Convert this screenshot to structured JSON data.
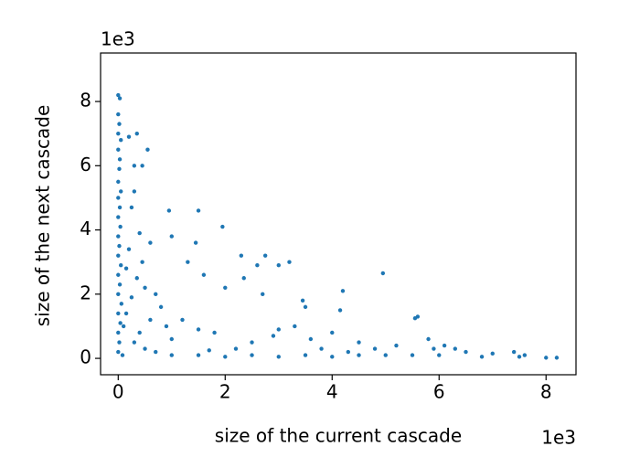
{
  "chart_data": {
    "type": "scatter",
    "x_label": "size of the current cascade",
    "y_label": "size of the next cascade",
    "x_offset_label": "1e3",
    "y_offset_label": "1e3",
    "color": "#1f77b4",
    "xlim": [
      -0.33,
      8.56
    ],
    "ylim": [
      -0.51,
      9.51
    ],
    "xticks": [
      0,
      2,
      4,
      6,
      8
    ],
    "yticks": [
      0,
      2,
      4,
      6,
      8
    ],
    "x": [
      0,
      0.03,
      0,
      0.02,
      0,
      0.05,
      0,
      0.03,
      0.02,
      0,
      0.05,
      0,
      0.03,
      0,
      0.04,
      0,
      0.02,
      0,
      0.05,
      0,
      0.03,
      0,
      0.06,
      0,
      0.04,
      0,
      0.02,
      0,
      0.08,
      0.1,
      0.2,
      0.35,
      0.3,
      0.45,
      0.55,
      0.3,
      0.25,
      0.4,
      0.6,
      0.45,
      0.35,
      0.5,
      0.7,
      0.8,
      0.6,
      0.9,
      0.4,
      0.3,
      1.0,
      0.15,
      0.2,
      0.25,
      0.15,
      0.5,
      0.95,
      1.5,
      1.0,
      1.3,
      1.45,
      1.6,
      1.95,
      2.0,
      2.3,
      2.35,
      2.6,
      2.7,
      2.75,
      3.0,
      3.2,
      3.45,
      3.5,
      3.3,
      3.0,
      4.2,
      4.15,
      4.0,
      4.95,
      5.6,
      5.55,
      5.2,
      1.2,
      1.5,
      1.8,
      2.5,
      2.9,
      3.6,
      4.5,
      4.8,
      5.9,
      6.1,
      6.5,
      7.0,
      7.4,
      7.5,
      7.6,
      8.0,
      8.2,
      6.8,
      6.0,
      5.5,
      5.0,
      4.5,
      4.0,
      3.5,
      3.0,
      2.5,
      2.0,
      1.5,
      1.0,
      0.7,
      5.8,
      6.3,
      3.8,
      4.3,
      2.2,
      1.7
    ],
    "values": [
      8.2,
      8.1,
      7.6,
      7.3,
      7.0,
      6.8,
      6.5,
      6.2,
      5.9,
      5.5,
      5.2,
      5.0,
      4.7,
      4.4,
      4.1,
      3.8,
      3.5,
      3.2,
      2.9,
      2.6,
      2.3,
      2.0,
      1.7,
      1.4,
      1.1,
      0.8,
      0.5,
      0.2,
      0.1,
      1.0,
      6.9,
      7.0,
      6.0,
      6.0,
      6.5,
      5.2,
      4.7,
      3.9,
      3.6,
      3.0,
      2.5,
      2.2,
      2.0,
      1.6,
      1.2,
      1.0,
      0.8,
      0.5,
      0.6,
      2.8,
      3.4,
      1.9,
      1.4,
      0.3,
      4.6,
      4.6,
      3.8,
      3.0,
      3.6,
      2.6,
      4.1,
      2.2,
      3.2,
      2.5,
      2.9,
      2.0,
      3.2,
      2.9,
      3.0,
      1.8,
      1.6,
      1.0,
      0.9,
      2.1,
      1.5,
      0.8,
      2.65,
      1.3,
      1.25,
      0.4,
      1.2,
      0.9,
      0.8,
      0.5,
      0.7,
      0.6,
      0.5,
      0.3,
      0.3,
      0.4,
      0.2,
      0.15,
      0.2,
      0.05,
      0.1,
      0.02,
      0.02,
      0.05,
      0.1,
      0.1,
      0.1,
      0.1,
      0.05,
      0.1,
      0.05,
      0.1,
      0.05,
      0.1,
      0.1,
      0.2,
      0.6,
      0.3,
      0.3,
      0.2,
      0.3,
      0.25
    ]
  }
}
